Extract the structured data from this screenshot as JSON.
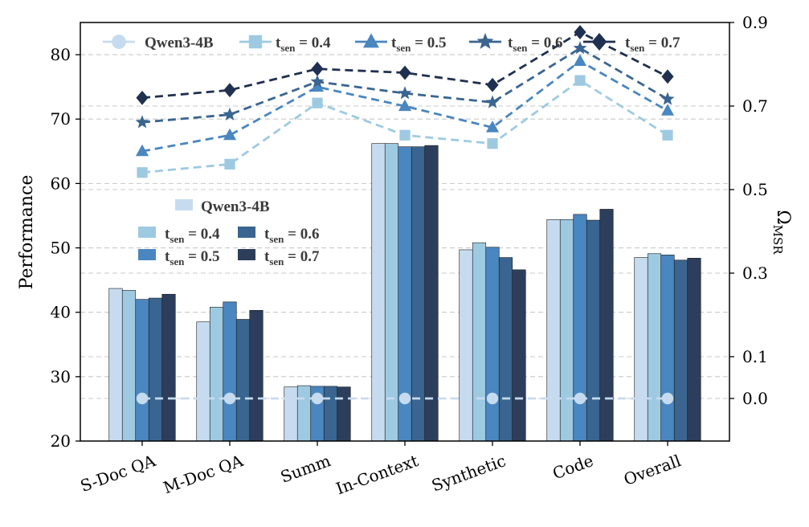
{
  "chart_data": {
    "type": "bar",
    "categories": [
      "S-Doc QA",
      "M-Doc QA",
      "Summ",
      "In-Context",
      "Synthetic",
      "Code",
      "Overall"
    ],
    "ylabel": "Performance",
    "ylim": [
      20,
      85
    ],
    "yticks": [
      20,
      30,
      40,
      50,
      60,
      70,
      80
    ],
    "y2label_main": "Ω",
    "y2label_sub": "MSR",
    "y2ticks": [
      {
        "value": 0.9,
        "label": "0.9"
      },
      {
        "value": 0.7,
        "label": "0.7"
      },
      {
        "value": 0.5,
        "label": "0.5"
      },
      {
        "value": 0.3,
        "label": "0.3"
      },
      {
        "value": 0.1,
        "label": "0.1"
      },
      {
        "value": 0.0,
        "label": "0.0"
      }
    ],
    "grid": true,
    "bar_series": [
      {
        "key": "qwen",
        "name": "Qwen3-4B",
        "color": "#c6dbef",
        "values": [
          43.7,
          38.5,
          28.4,
          66.2,
          49.7,
          54.4,
          48.5
        ]
      },
      {
        "key": "t04",
        "name": "t_sen = 0.4",
        "color": "#9ecae1",
        "values": [
          43.4,
          40.8,
          28.6,
          66.2,
          50.8,
          54.4,
          49.1
        ]
      },
      {
        "key": "t05",
        "name": "t_sen = 0.5",
        "color": "#4a86c0",
        "values": [
          42.0,
          41.6,
          28.5,
          65.7,
          50.1,
          55.2,
          48.9
        ]
      },
      {
        "key": "t06",
        "name": "t_sen = 0.6",
        "color": "#3a6590",
        "values": [
          42.2,
          38.9,
          28.5,
          65.7,
          48.5,
          54.3,
          48.1
        ]
      },
      {
        "key": "t07",
        "name": "t_sen = 0.7",
        "color": "#2c3e5c",
        "values": [
          42.8,
          40.3,
          28.4,
          65.9,
          46.6,
          56.0,
          48.4
        ]
      }
    ],
    "line_series": [
      {
        "key": "qwen",
        "name": "Qwen3-4B",
        "color": "#c6dbef",
        "marker": "circle",
        "values": [
          0.0,
          0.0,
          0.0,
          0.0,
          0.0,
          0.0,
          0.0
        ]
      },
      {
        "key": "t04",
        "name": "t_sen = 0.4",
        "color": "#9ecae1",
        "marker": "square",
        "values": [
          61.7,
          63.0,
          72.5,
          67.5,
          66.2,
          76.0,
          67.5
        ]
      },
      {
        "key": "t05",
        "name": "t_sen = 0.5",
        "color": "#4a86c0",
        "marker": "triangle",
        "values": [
          65.0,
          67.5,
          75.0,
          72.0,
          68.7,
          79.0,
          71.3
        ]
      },
      {
        "key": "t06",
        "name": "t_sen = 0.6",
        "color": "#3a6590",
        "marker": "star",
        "values": [
          69.5,
          70.7,
          75.8,
          74.0,
          72.6,
          81.0,
          73.1
        ]
      },
      {
        "key": "t07",
        "name": "t_sen = 0.7",
        "color": "#1f3050",
        "marker": "diamond",
        "values": [
          73.3,
          74.5,
          77.8,
          77.2,
          75.3,
          83.5,
          76.6
        ]
      }
    ],
    "legend_top": {
      "labels": [
        {
          "main": "Qwen3-4B",
          "sub": "",
          "tail": ""
        },
        {
          "main": "t",
          "sub": "sen",
          "tail": " = 0.4"
        },
        {
          "main": "t",
          "sub": "sen",
          "tail": " = 0.5"
        },
        {
          "main": "t",
          "sub": "sen",
          "tail": " = 0.6"
        },
        {
          "main": "t",
          "sub": "sen",
          "tail": " = 0.7"
        }
      ]
    },
    "legend_inner": {
      "labels": [
        {
          "main": "Qwen3-4B",
          "sub": "",
          "tail": ""
        },
        {
          "main": "t",
          "sub": "sen",
          "tail": " = 0.4"
        },
        {
          "main": "t",
          "sub": "sen",
          "tail": " = 0.6"
        },
        {
          "main": "t",
          "sub": "sen",
          "tail": " = 0.5"
        },
        {
          "main": "t",
          "sub": "sen",
          "tail": " = 0.7"
        }
      ]
    }
  }
}
